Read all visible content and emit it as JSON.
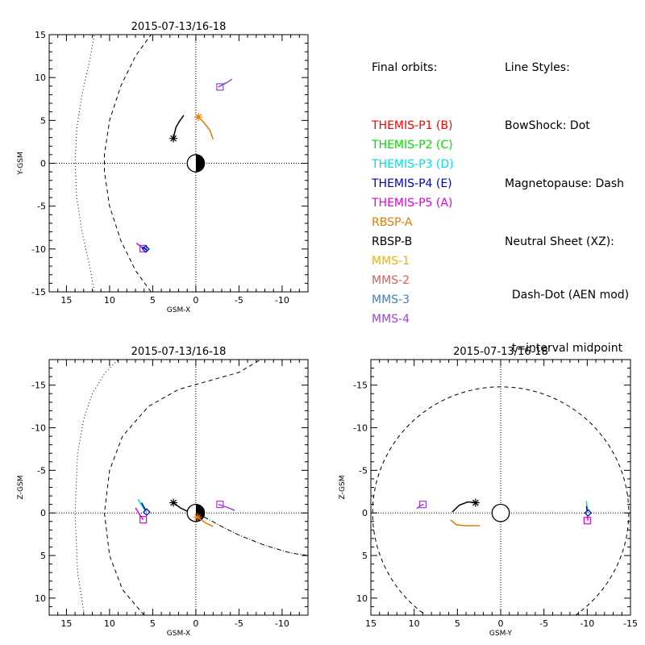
{
  "legend": {
    "title": "Final orbits:",
    "items": [
      {
        "label": "THEMIS-P1 (B)",
        "color": "#ff0000"
      },
      {
        "label": "THEMIS-P2 (C)",
        "color": "#00e000"
      },
      {
        "label": "THEMIS-P3 (D)",
        "color": "#00e0e0"
      },
      {
        "label": "THEMIS-P4 (E)",
        "color": "#0000c0"
      },
      {
        "label": "THEMIS-P5 (A)",
        "color": "#e000e0"
      },
      {
        "label": "RBSP-A",
        "color": "#e87800"
      },
      {
        "label": "RBSP-B",
        "color": "#000000"
      },
      {
        "label": "MMS-1",
        "color": "#f0b000"
      },
      {
        "label": "MMS-2",
        "color": "#d06060"
      },
      {
        "label": "MMS-3",
        "color": "#4080c0"
      },
      {
        "label": "MMS-4",
        "color": "#a040e0"
      }
    ]
  },
  "styles": {
    "title": "Line Styles:",
    "lines": [
      "BowShock: Dot",
      "Magnetopause: Dash",
      "Neutral Sheet (XZ):",
      "  Dash-Dot (AEN mod)",
      "  t=interval midpoint"
    ]
  },
  "chart_data": [
    {
      "type": "line",
      "title": "2015-07-13/16-18",
      "xlabel": "GSM-X",
      "ylabel": "Y-GSM",
      "xlim": [
        17,
        -13
      ],
      "ylim": [
        15,
        -15
      ],
      "xticks": [
        15,
        10,
        5,
        0,
        -5,
        -10
      ],
      "yticks": [
        -15,
        -10,
        -5,
        0,
        5,
        10,
        15
      ],
      "bowshock": [
        [
          11.6,
          -16
        ],
        [
          12.3,
          -12
        ],
        [
          13.2,
          -8
        ],
        [
          13.8,
          -4
        ],
        [
          14.0,
          0
        ],
        [
          13.8,
          4
        ],
        [
          13.2,
          8
        ],
        [
          12.3,
          12
        ],
        [
          11.6,
          16
        ]
      ],
      "magnetopause": [
        [
          5.2,
          -15
        ],
        [
          7.0,
          -12.5
        ],
        [
          8.7,
          -9
        ],
        [
          10.0,
          -5
        ],
        [
          10.6,
          -1
        ],
        [
          10.6,
          1
        ],
        [
          10.0,
          5
        ],
        [
          8.7,
          9
        ],
        [
          7.0,
          12.5
        ],
        [
          5.2,
          15
        ]
      ],
      "tracks": [
        {
          "name": "THEMIS-P5 (A)",
          "color": "#e000e0",
          "points": [
            [
              6.9,
              -9.3
            ],
            [
              6.1,
              -9.95
            ]
          ],
          "end_marker": "square",
          "end": [
            6.1,
            -9.95
          ]
        },
        {
          "name": "THEMIS-P3 (D)",
          "color": "#00e0e0",
          "points": [
            [
              6.4,
              -9.6
            ],
            [
              5.6,
              -10.1
            ]
          ],
          "end_marker": "diamond",
          "end": [
            5.8,
            -10.0
          ]
        },
        {
          "name": "THEMIS-P4 (E)",
          "color": "#0000c0",
          "points": [
            [
              6.2,
              -9.8
            ],
            [
              5.7,
              -10.1
            ]
          ],
          "end_marker": null,
          "end": null
        },
        {
          "name": "RBSP-B",
          "color": "#000000",
          "points": [
            [
              1.4,
              5.6
            ],
            [
              1.9,
              4.9
            ],
            [
              2.3,
              4.2
            ],
            [
              2.5,
              3.4
            ],
            [
              2.6,
              2.9
            ]
          ],
          "end_marker": "asterisk",
          "end": [
            2.6,
            2.9
          ]
        },
        {
          "name": "RBSP-A",
          "color": "#e87800",
          "points": [
            [
              -2.0,
              2.8
            ],
            [
              -1.6,
              3.9
            ],
            [
              -0.9,
              4.8
            ],
            [
              -0.3,
              5.4
            ]
          ],
          "end_marker": "asterisk",
          "end": [
            -0.3,
            5.4
          ]
        },
        {
          "name": "MMS-4",
          "color": "#a040e0",
          "points": [
            [
              -2.6,
              8.9
            ],
            [
              -3.4,
              9.3
            ],
            [
              -4.2,
              9.8
            ]
          ],
          "end_marker": "square",
          "end": [
            -2.8,
            8.9
          ]
        },
        {
          "name": "MMS-3",
          "color": "#4080c0",
          "points": [
            [
              -2.8,
              9.0
            ],
            [
              -3.5,
              9.4
            ]
          ],
          "end_marker": null,
          "end": null
        }
      ]
    },
    {
      "type": "line",
      "title": "2015-07-13/16-18",
      "xlabel": "GSM-X",
      "ylabel": "Z-GSM",
      "xlim": [
        17,
        -13
      ],
      "ylim": [
        -18,
        12
      ],
      "xticks": [
        15,
        10,
        5,
        0,
        -5,
        -10
      ],
      "yticks": [
        10,
        5,
        0,
        -5,
        -10,
        -15
      ],
      "bowshock": [
        [
          13.0,
          11.5
        ],
        [
          13.7,
          7
        ],
        [
          14.0,
          0
        ],
        [
          13.7,
          -7
        ],
        [
          13.0,
          -11
        ],
        [
          12.0,
          -14
        ],
        [
          10.5,
          -16.5
        ],
        [
          9.0,
          -18
        ]
      ],
      "magnetopause": [
        [
          6.0,
          12
        ],
        [
          8.5,
          9
        ],
        [
          10.0,
          5
        ],
        [
          10.6,
          0
        ],
        [
          10.0,
          -5
        ],
        [
          8.5,
          -9
        ],
        [
          5.5,
          -12.5
        ],
        [
          2.0,
          -14.5
        ],
        [
          -1.5,
          -15.5
        ],
        [
          -5.0,
          -16.5
        ],
        [
          -7.5,
          -18
        ]
      ],
      "neutral_sheet": [
        [
          0.0,
          0
        ],
        [
          -1.2,
          0.6
        ],
        [
          -3,
          1.6
        ],
        [
          -5,
          2.6
        ],
        [
          -8,
          3.8
        ],
        [
          -11,
          4.7
        ],
        [
          -13,
          5.0
        ]
      ],
      "tracks": [
        {
          "name": "THEMIS-P5 (A)",
          "color": "#e000e0",
          "points": [
            [
              7.0,
              -0.6
            ],
            [
              6.5,
              0.2
            ],
            [
              6.1,
              0.8
            ]
          ],
          "end_marker": "square",
          "end": [
            6.1,
            0.8
          ]
        },
        {
          "name": "THEMIS-P3 (D)",
          "color": "#00e0e0",
          "points": [
            [
              6.7,
              -1.6
            ],
            [
              6.1,
              -0.6
            ],
            [
              5.7,
              -0.1
            ]
          ],
          "end_marker": "diamond",
          "end": [
            5.7,
            -0.1
          ]
        },
        {
          "name": "THEMIS-P4 (E)",
          "color": "#0000c0",
          "points": [
            [
              6.3,
              -1.2
            ],
            [
              5.8,
              -0.3
            ]
          ],
          "end_marker": null,
          "end": null
        },
        {
          "name": "RBSP-B",
          "color": "#000000",
          "points": [
            [
              2.6,
              -1.2
            ],
            [
              1.8,
              -0.6
            ],
            [
              1.0,
              -0.2
            ]
          ],
          "end_marker": "asterisk",
          "end": [
            2.6,
            -1.2
          ]
        },
        {
          "name": "RBSP-A",
          "color": "#e87800",
          "points": [
            [
              -0.3,
              0.6
            ],
            [
              -1.2,
              1.2
            ],
            [
              -2.0,
              1.6
            ]
          ],
          "end_marker": "asterisk",
          "end": [
            -0.2,
            0.5
          ]
        },
        {
          "name": "MMS-4",
          "color": "#a040e0",
          "points": [
            [
              -2.6,
              -1.0
            ],
            [
              -3.5,
              -0.7
            ],
            [
              -4.5,
              -0.3
            ]
          ],
          "end_marker": "square",
          "end": [
            -2.8,
            -1.0
          ]
        }
      ]
    },
    {
      "type": "line",
      "title": "2015-07-13/16-18",
      "xlabel": "GSM-Y",
      "ylabel": "Z-GSM",
      "xlim": [
        15,
        -15
      ],
      "ylim": [
        -18,
        12
      ],
      "xticks": [
        15,
        10,
        5,
        0,
        -5,
        -10,
        -15
      ],
      "yticks": [
        10,
        5,
        0,
        -5,
        -10,
        -15
      ],
      "magnetopause_circle": {
        "cx": 0,
        "cy": 0,
        "r": 14.8
      },
      "tracks": [
        {
          "name": "THEMIS-P5 (A)",
          "color": "#e000e0",
          "points": [
            [
              -10.0,
              0.4
            ],
            [
              -10.1,
              0.9
            ]
          ],
          "end_marker": "square",
          "end": [
            -10.0,
            0.9
          ]
        },
        {
          "name": "THEMIS-P3 (D)",
          "color": "#00e0e0",
          "points": [
            [
              -9.9,
              -1.4
            ],
            [
              -10.0,
              -0.5
            ],
            [
              -10.1,
              0.0
            ]
          ],
          "end_marker": "diamond",
          "end": [
            -10.1,
            0.0
          ]
        },
        {
          "name": "THEMIS-P4 (E)",
          "color": "#0000c0",
          "points": [
            [
              -9.9,
              -0.8
            ],
            [
              -10.0,
              -0.2
            ]
          ],
          "end_marker": null,
          "end": null
        },
        {
          "name": "RBSP-B",
          "color": "#000000",
          "points": [
            [
              5.6,
              -0.1
            ],
            [
              4.8,
              -0.9
            ],
            [
              3.8,
              -1.3
            ],
            [
              2.9,
              -1.2
            ]
          ],
          "end_marker": "asterisk",
          "end": [
            2.9,
            -1.2
          ]
        },
        {
          "name": "RBSP-A",
          "color": "#e87800",
          "points": [
            [
              5.8,
              0.8
            ],
            [
              5.1,
              1.4
            ],
            [
              4.0,
              1.5
            ],
            [
              2.4,
              1.5
            ]
          ],
          "end_marker": null,
          "end": null
        },
        {
          "name": "MMS-4",
          "color": "#a040e0",
          "points": [
            [
              9.7,
              -0.5
            ],
            [
              9.2,
              -0.9
            ],
            [
              8.9,
              -1.0
            ]
          ],
          "end_marker": "square",
          "end": [
            9.0,
            -1.0
          ]
        }
      ]
    }
  ]
}
